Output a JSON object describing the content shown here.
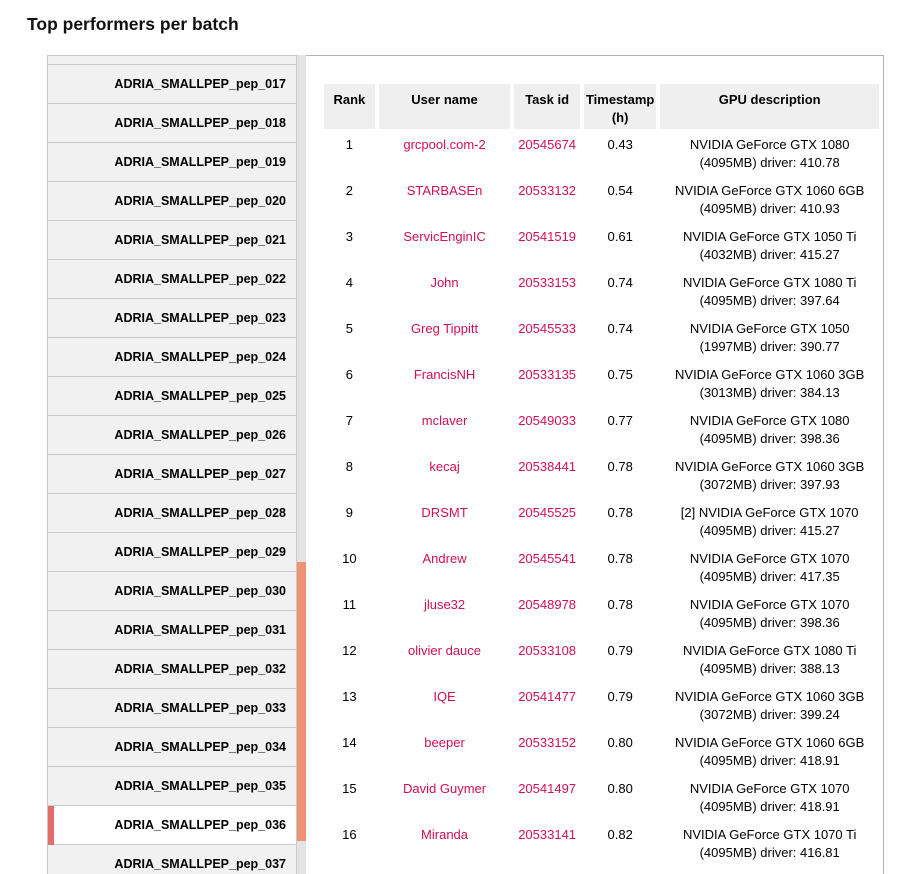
{
  "page": {
    "title": "Top performers per batch"
  },
  "sidebar": {
    "items": [
      "ADRIA_SMALLPEP_pep_017",
      "ADRIA_SMALLPEP_pep_018",
      "ADRIA_SMALLPEP_pep_019",
      "ADRIA_SMALLPEP_pep_020",
      "ADRIA_SMALLPEP_pep_021",
      "ADRIA_SMALLPEP_pep_022",
      "ADRIA_SMALLPEP_pep_023",
      "ADRIA_SMALLPEP_pep_024",
      "ADRIA_SMALLPEP_pep_025",
      "ADRIA_SMALLPEP_pep_026",
      "ADRIA_SMALLPEP_pep_027",
      "ADRIA_SMALLPEP_pep_028",
      "ADRIA_SMALLPEP_pep_029",
      "ADRIA_SMALLPEP_pep_030",
      "ADRIA_SMALLPEP_pep_031",
      "ADRIA_SMALLPEP_pep_032",
      "ADRIA_SMALLPEP_pep_033",
      "ADRIA_SMALLPEP_pep_034",
      "ADRIA_SMALLPEP_pep_035",
      "ADRIA_SMALLPEP_pep_036",
      "ADRIA_SMALLPEP_pep_037"
    ],
    "selected": "ADRIA_SMALLPEP_pep_036"
  },
  "table": {
    "headers": [
      "Rank",
      "User name",
      "Task id",
      "Timestamp\n(h)",
      "GPU description"
    ],
    "rows": [
      {
        "rank": "1",
        "user": "grcpool.com-2",
        "task": "20545674",
        "time": "0.43",
        "gpu1": "NVIDIA GeForce GTX 1080",
        "gpu2": "(4095MB) driver: 410.78"
      },
      {
        "rank": "2",
        "user": "STARBASEn",
        "task": "20533132",
        "time": "0.54",
        "gpu1": "NVIDIA GeForce GTX 1060 6GB",
        "gpu2": "(4095MB) driver: 410.93"
      },
      {
        "rank": "3",
        "user": "ServicEnginIC",
        "task": "20541519",
        "time": "0.61",
        "gpu1": "NVIDIA GeForce GTX 1050 Ti",
        "gpu2": "(4032MB) driver: 415.27"
      },
      {
        "rank": "4",
        "user": "John",
        "task": "20533153",
        "time": "0.74",
        "gpu1": "NVIDIA GeForce GTX 1080 Ti",
        "gpu2": "(4095MB) driver: 397.64"
      },
      {
        "rank": "5",
        "user": "Greg Tippitt",
        "task": "20545533",
        "time": "0.74",
        "gpu1": "NVIDIA GeForce GTX 1050",
        "gpu2": "(1997MB) driver: 390.77"
      },
      {
        "rank": "6",
        "user": "FrancisNH",
        "task": "20533135",
        "time": "0.75",
        "gpu1": "NVIDIA GeForce GTX 1060 3GB",
        "gpu2": "(3013MB) driver: 384.13"
      },
      {
        "rank": "7",
        "user": "mclaver",
        "task": "20549033",
        "time": "0.77",
        "gpu1": "NVIDIA GeForce GTX 1080",
        "gpu2": "(4095MB) driver: 398.36"
      },
      {
        "rank": "8",
        "user": "kecaj",
        "task": "20538441",
        "time": "0.78",
        "gpu1": "NVIDIA GeForce GTX 1060 3GB",
        "gpu2": "(3072MB) driver: 397.93"
      },
      {
        "rank": "9",
        "user": "DRSMT",
        "task": "20545525",
        "time": "0.78",
        "gpu1": "[2] NVIDIA GeForce GTX 1070",
        "gpu2": "(4095MB) driver: 415.27"
      },
      {
        "rank": "10",
        "user": "Andrew",
        "task": "20545541",
        "time": "0.78",
        "gpu1": "NVIDIA GeForce GTX 1070",
        "gpu2": "(4095MB) driver: 417.35"
      },
      {
        "rank": "11",
        "user": "jluse32",
        "task": "20548978",
        "time": "0.78",
        "gpu1": "NVIDIA GeForce GTX 1070",
        "gpu2": "(4095MB) driver: 398.36"
      },
      {
        "rank": "12",
        "user": "olivier dauce",
        "task": "20533108",
        "time": "0.79",
        "gpu1": "NVIDIA GeForce GTX 1080 Ti",
        "gpu2": "(4095MB) driver: 388.13"
      },
      {
        "rank": "13",
        "user": "IQE",
        "task": "20541477",
        "time": "0.79",
        "gpu1": "NVIDIA GeForce GTX 1060 3GB",
        "gpu2": "(3072MB) driver: 399.24"
      },
      {
        "rank": "14",
        "user": "beeper",
        "task": "20533152",
        "time": "0.80",
        "gpu1": "NVIDIA GeForce GTX 1060 6GB",
        "gpu2": "(4095MB) driver: 418.91"
      },
      {
        "rank": "15",
        "user": "David Guymer",
        "task": "20541497",
        "time": "0.80",
        "gpu1": "NVIDIA GeForce GTX 1070",
        "gpu2": "(4095MB) driver: 418.91"
      },
      {
        "rank": "16",
        "user": "Miranda",
        "task": "20533141",
        "time": "0.82",
        "gpu1": "NVIDIA GeForce GTX 1070 Ti",
        "gpu2": "(4095MB) driver: 416.81"
      }
    ]
  },
  "colors": {
    "link": "#d01050",
    "selected_accent": "#e06d68",
    "scrollbar_thumb": "#ed9373",
    "header_cell_bg": "#efefef",
    "sidebar_item_bg": "#f1f1f1"
  }
}
